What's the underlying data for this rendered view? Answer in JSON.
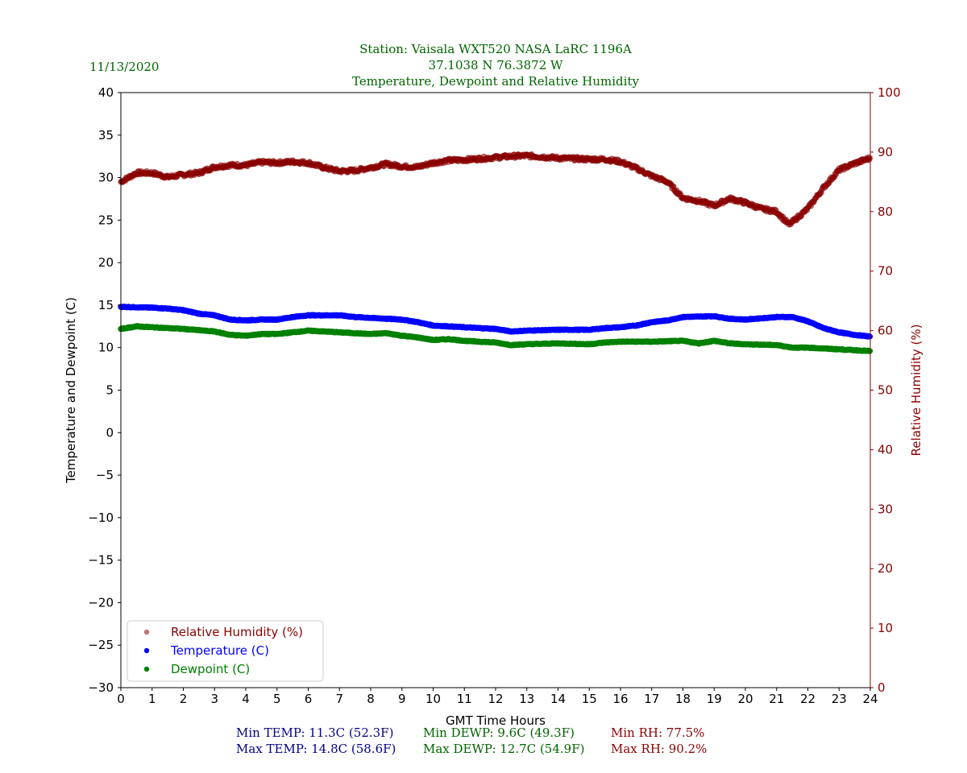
{
  "header": {
    "date": "11/13/2020",
    "title_lines": [
      "Station:  Vaisala WXT520  NASA LaRC 1196A",
      "37.1038 N 76.3872 W",
      "Temperature, Dewpoint and Relative Humidity"
    ]
  },
  "footer": {
    "min_temp": "Min TEMP: 11.3C (52.3F)",
    "max_temp": "Max TEMP: 14.8C (58.6F)",
    "min_dewp": "Min DEWP: 9.6C (49.3F)",
    "max_dewp": "Max DEWP: 12.7C (54.9F)",
    "min_rh": "Min RH: 77.5%",
    "max_rh": "Max RH: 90.2%"
  },
  "colors": {
    "title": "#006400",
    "temp": "#0000ff",
    "dewp": "#008000",
    "rh": "#8b0000",
    "temp_stats": "#00008b"
  },
  "chart_data": {
    "type": "scatter",
    "xlabel": "GMT Time Hours",
    "ylabel": "Temperature and Dewpoint (C)",
    "y2label": "Relative Humidity (%)",
    "xlim": [
      0,
      24
    ],
    "ylim": [
      -30,
      40
    ],
    "y2lim": [
      0,
      100
    ],
    "xticks": [
      0,
      1,
      2,
      3,
      4,
      5,
      6,
      7,
      8,
      9,
      10,
      11,
      12,
      13,
      14,
      15,
      16,
      17,
      18,
      19,
      20,
      21,
      22,
      23,
      24
    ],
    "yticks": [
      40,
      35,
      30,
      25,
      20,
      15,
      10,
      5,
      0,
      -5,
      -10,
      -15,
      -20,
      -25,
      -30
    ],
    "ytick_labels": [
      "40",
      "35",
      "30",
      "25",
      "20",
      "15",
      "10",
      "5",
      "0",
      "−5",
      "−10",
      "−15",
      "−20",
      "−25",
      "−30"
    ],
    "y2ticks": [
      100,
      90,
      80,
      70,
      60,
      50,
      40,
      30,
      20,
      10,
      0
    ],
    "legend_position": "lower-left",
    "series": [
      {
        "name": "Relative Humidity (%)",
        "axis": "right",
        "color": "#8b0000",
        "x": [
          0,
          0.5,
          1,
          1.5,
          2,
          2.5,
          3,
          3.5,
          4,
          4.5,
          5,
          5.5,
          6,
          6.5,
          7,
          7.5,
          8,
          8.5,
          9,
          9.5,
          10,
          10.5,
          11,
          12,
          12.5,
          13,
          14,
          15,
          15.5,
          16,
          16.5,
          17,
          17.5,
          18,
          18.5,
          19,
          19.5,
          20,
          20.5,
          21,
          21.4,
          22,
          22.5,
          23,
          23.5,
          24
        ],
        "y": [
          85,
          86.5,
          86.5,
          85.8,
          86.2,
          86.5,
          87.5,
          87.8,
          87.8,
          88.3,
          88.2,
          88.4,
          88.2,
          87.4,
          86.8,
          86.9,
          87.4,
          88.0,
          87.6,
          87.5,
          88.2,
          88.6,
          88.7,
          89.1,
          89.3,
          89.4,
          89.0,
          88.8,
          88.8,
          88.4,
          87.3,
          86.0,
          85.0,
          82.3,
          81.8,
          81.0,
          82.2,
          81.5,
          80.5,
          80.0,
          77.8,
          80.5,
          84.0,
          87.0,
          88.1,
          89.0
        ]
      },
      {
        "name": "Temperature (C)",
        "axis": "left",
        "color": "#0000ff",
        "x": [
          0,
          1,
          1.5,
          2,
          2.5,
          3,
          3.5,
          4,
          4.5,
          5,
          5.5,
          6,
          7,
          7.5,
          8,
          9,
          9.5,
          10,
          10.5,
          11,
          12,
          12.5,
          13,
          14,
          15,
          15.5,
          16,
          16.5,
          17,
          17.5,
          18,
          19,
          19.5,
          20,
          21,
          21.5,
          22,
          22.5,
          23,
          23.5,
          24
        ],
        "y": [
          14.8,
          14.7,
          14.6,
          14.4,
          14.0,
          13.8,
          13.3,
          13.2,
          13.3,
          13.3,
          13.6,
          13.8,
          13.8,
          13.6,
          13.5,
          13.3,
          13.0,
          12.6,
          12.5,
          12.4,
          12.2,
          11.9,
          12.0,
          12.1,
          12.1,
          12.3,
          12.4,
          12.6,
          13.0,
          13.2,
          13.6,
          13.7,
          13.4,
          13.3,
          13.6,
          13.6,
          13.1,
          12.3,
          11.8,
          11.5,
          11.3
        ]
      },
      {
        "name": "Dewpoint (C)",
        "axis": "left",
        "color": "#008000",
        "x": [
          0,
          0.5,
          1,
          2,
          3,
          3.5,
          4,
          4.5,
          5,
          5.5,
          6,
          7,
          8,
          8.5,
          9,
          9.5,
          10,
          10.5,
          11,
          12,
          12.5,
          13,
          14,
          15,
          15.5,
          16,
          17,
          18,
          18.5,
          19,
          19.5,
          20,
          21,
          21.5,
          22,
          23,
          24
        ],
        "y": [
          12.2,
          12.5,
          12.4,
          12.2,
          11.9,
          11.5,
          11.4,
          11.6,
          11.6,
          11.8,
          12.0,
          11.8,
          11.6,
          11.7,
          11.4,
          11.2,
          10.9,
          11.0,
          10.8,
          10.6,
          10.3,
          10.4,
          10.5,
          10.4,
          10.6,
          10.7,
          10.7,
          10.8,
          10.5,
          10.8,
          10.5,
          10.4,
          10.3,
          10.0,
          10.0,
          9.8,
          9.6
        ]
      }
    ]
  }
}
